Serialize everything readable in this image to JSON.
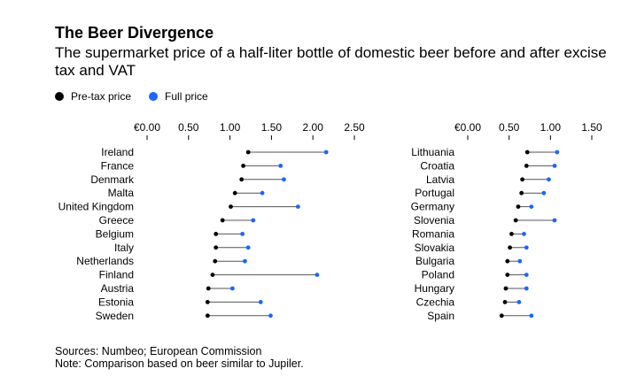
{
  "header": {
    "title": "The Beer Divergence",
    "subtitle": "The supermarket price of a half-liter bottle of domestic beer before and after excise tax and VAT"
  },
  "legend": {
    "items": [
      {
        "label": "Pre-tax price",
        "color": "#000000"
      },
      {
        "label": "Full price",
        "color": "#1a66ff"
      }
    ]
  },
  "footer": {
    "sources": "Sources: Numbeo; European Commission",
    "note": "Note: Comparison based on beer similar to Jupiler."
  },
  "chart_data": [
    {
      "type": "dumbbell",
      "title": "",
      "xlabel": "",
      "ylabel": "",
      "xlim": [
        0,
        2.5
      ],
      "ticks": [
        0,
        0.5,
        1.0,
        1.5,
        2.0,
        2.5
      ],
      "tick_labels": [
        "€0.00",
        "0.50",
        "1.00",
        "1.50",
        "2.00",
        "2.50"
      ],
      "categories": [
        "Ireland",
        "France",
        "Denmark",
        "Malta",
        "United Kingdom",
        "Greece",
        "Belgium",
        "Italy",
        "Netherlands",
        "Finland",
        "Austria",
        "Estonia",
        "Sweden"
      ],
      "series": [
        {
          "name": "Pre-tax price",
          "values": [
            1.22,
            1.16,
            1.14,
            1.06,
            1.01,
            0.91,
            0.83,
            0.83,
            0.82,
            0.79,
            0.74,
            0.73,
            0.73
          ]
        },
        {
          "name": "Full price",
          "values": [
            2.16,
            1.61,
            1.65,
            1.39,
            1.82,
            1.28,
            1.15,
            1.22,
            1.18,
            2.05,
            1.03,
            1.37,
            1.49
          ]
        }
      ]
    },
    {
      "type": "dumbbell",
      "title": "",
      "xlabel": "",
      "ylabel": "",
      "xlim": [
        0,
        1.5
      ],
      "ticks": [
        0,
        0.5,
        1.0,
        1.5
      ],
      "tick_labels": [
        "€0.00",
        "0.50",
        "1.00",
        "1.50"
      ],
      "categories": [
        "Lithuania",
        "Croatia",
        "Latvia",
        "Portugal",
        "Germany",
        "Slovenia",
        "Romania",
        "Slovakia",
        "Bulgaria",
        "Poland",
        "Hungary",
        "Czechia",
        "Spain"
      ],
      "series": [
        {
          "name": "Pre-tax price",
          "values": [
            0.72,
            0.71,
            0.66,
            0.65,
            0.61,
            0.58,
            0.53,
            0.51,
            0.48,
            0.48,
            0.46,
            0.45,
            0.41
          ]
        },
        {
          "name": "Full price",
          "values": [
            1.08,
            1.05,
            0.98,
            0.92,
            0.77,
            1.05,
            0.68,
            0.71,
            0.63,
            0.71,
            0.71,
            0.62,
            0.77
          ]
        }
      ]
    }
  ]
}
